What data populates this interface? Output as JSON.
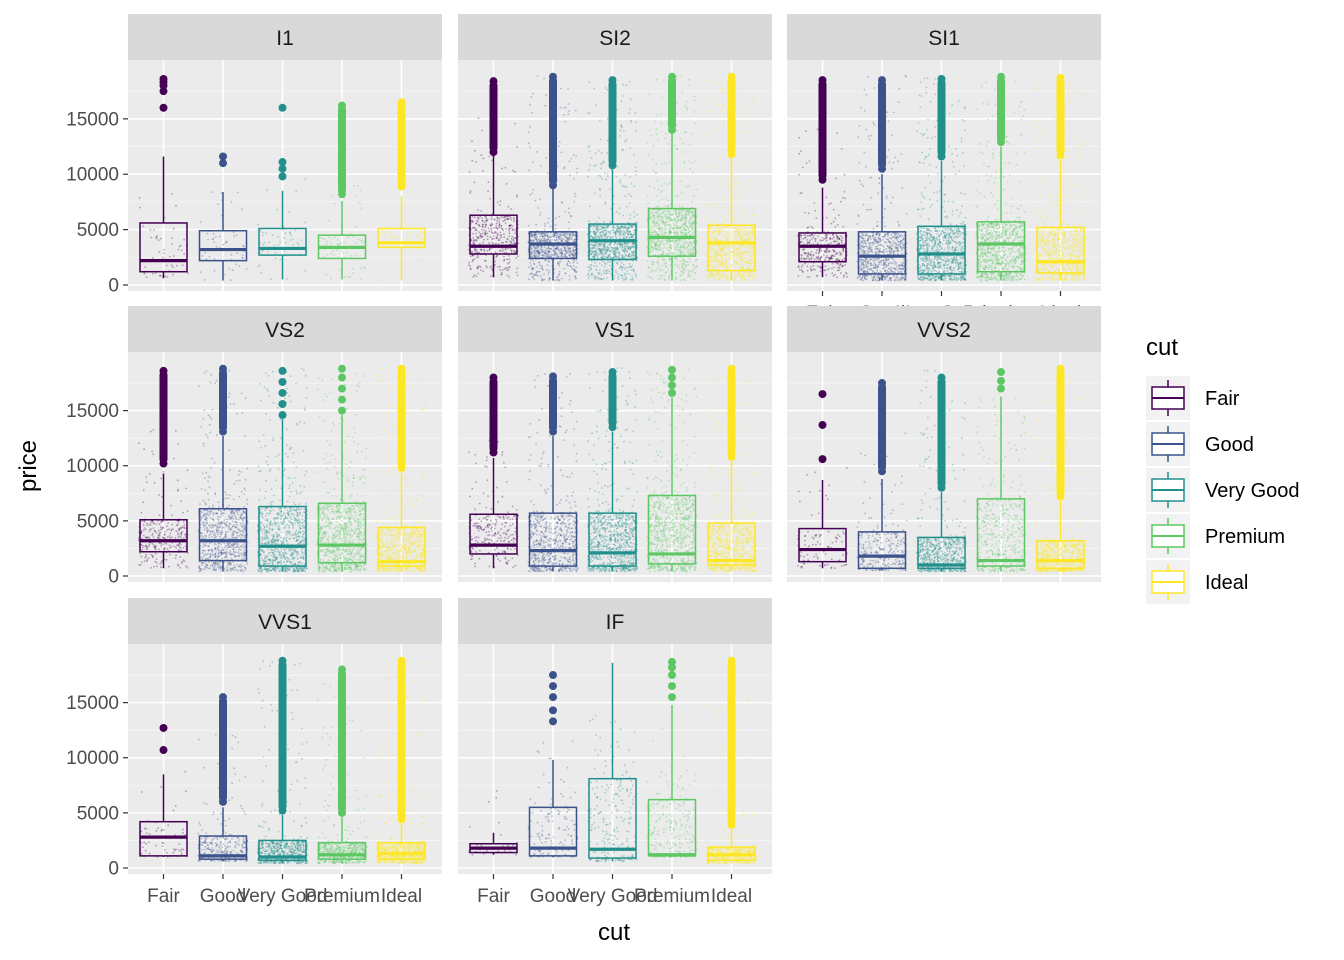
{
  "chart_data": {
    "type": "boxplot",
    "facet_by": "clarity",
    "xlabel": "cut",
    "ylabel": "price",
    "categories": [
      "Fair",
      "Good",
      "Very Good",
      "Premium",
      "Ideal"
    ],
    "colors": {
      "Fair": "#440154",
      "Good": "#3B528B",
      "Very Good": "#21908C",
      "Premium": "#5DC863",
      "Ideal": "#FDE725"
    },
    "ylim": [
      0,
      19500
    ],
    "y_ticks": [
      0,
      5000,
      10000,
      15000
    ],
    "y_tick_labels": [
      "0",
      "5000",
      "10000",
      "15000"
    ],
    "grid": true,
    "legend": {
      "title": "cut",
      "position": "right",
      "items": [
        "Fair",
        "Good",
        "Very Good",
        "Premium",
        "Ideal"
      ]
    },
    "facets": [
      {
        "title": "I1",
        "boxes": [
          {
            "cut": "Fair",
            "min": 600,
            "q1": 1200,
            "median": 2200,
            "q3": 5600,
            "max": 11600,
            "outliers": [
              16000,
              17500,
              18000,
              18300,
              18600
            ],
            "density": 0.04
          },
          {
            "cut": "Good",
            "min": 400,
            "q1": 2200,
            "median": 3200,
            "q3": 4900,
            "max": 8400,
            "outliers": [
              11000,
              11600
            ],
            "density": 0.04
          },
          {
            "cut": "Very Good",
            "min": 500,
            "q1": 2700,
            "median": 3300,
            "q3": 5100,
            "max": 8500,
            "outliers": [
              9800,
              10500,
              11100,
              16000
            ],
            "density": 0.04
          },
          {
            "cut": "Premium",
            "min": 500,
            "q1": 2400,
            "median": 3400,
            "q3": 4500,
            "max": 7600,
            "outliers": [
              8200,
              8800,
              9300,
              9900,
              10500,
              11700,
              13100,
              15200,
              16200
            ],
            "density": 0.06
          },
          {
            "cut": "Ideal",
            "min": 400,
            "q1": 3400,
            "median": 3800,
            "q3": 5100,
            "max": 8000,
            "outliers": [
              8900,
              9200,
              10500,
              11500,
              12200,
              13100,
              16500
            ],
            "density": 0.05
          }
        ]
      },
      {
        "title": "SI2",
        "boxes": [
          {
            "cut": "Fair",
            "min": 700,
            "q1": 2800,
            "median": 3500,
            "q3": 6300,
            "max": 11800,
            "outliers": [
              12000,
              12600,
              13300,
              14000,
              14800,
              15500,
              16200,
              17000,
              17800,
              18400
            ],
            "density": 0.45
          },
          {
            "cut": "Good",
            "min": 400,
            "q1": 2400,
            "median": 3700,
            "q3": 4800,
            "max": 8700,
            "outliers": [
              9000,
              10000,
              11000,
              12000,
              13000,
              14000,
              15000,
              16000,
              17000,
              18000,
              18800
            ],
            "density": 0.8
          },
          {
            "cut": "Very Good",
            "min": 400,
            "q1": 2300,
            "median": 4000,
            "q3": 5500,
            "max": 10400,
            "outliers": [
              10800,
              11500,
              12500,
              13500,
              14500,
              15500,
              16500,
              17500,
              18500
            ],
            "density": 1.0
          },
          {
            "cut": "Premium",
            "min": 400,
            "q1": 2600,
            "median": 4300,
            "q3": 6900,
            "max": 13700,
            "outliers": [
              14000,
              15000,
              16000,
              17000,
              18000,
              18800
            ],
            "density": 1.0
          },
          {
            "cut": "Ideal",
            "min": 400,
            "q1": 1300,
            "median": 3800,
            "q3": 5400,
            "max": 11400,
            "outliers": [
              11800,
              12800,
              13800,
              14800,
              15800,
              16800,
              17800,
              18800
            ],
            "density": 1.0
          }
        ]
      },
      {
        "title": "SI1",
        "boxes": [
          {
            "cut": "Fair",
            "min": 700,
            "q1": 2100,
            "median": 3500,
            "q3": 4700,
            "max": 8800,
            "outliers": [
              9500,
              10200,
              11000,
              12000,
              13000,
              14000,
              15000,
              16000,
              17500,
              18500
            ],
            "density": 0.4
          },
          {
            "cut": "Good",
            "min": 400,
            "q1": 1000,
            "median": 2600,
            "q3": 4800,
            "max": 10000,
            "outliers": [
              10500,
              11500,
              12500,
              13500,
              14500,
              15500,
              16500,
              17500,
              18500
            ],
            "density": 0.8
          },
          {
            "cut": "Very Good",
            "min": 400,
            "q1": 1000,
            "median": 2800,
            "q3": 5300,
            "max": 11200,
            "outliers": [
              11600,
              12600,
              13600,
              14600,
              15600,
              16600,
              17600,
              18600
            ],
            "density": 1.0
          },
          {
            "cut": "Premium",
            "min": 400,
            "q1": 1200,
            "median": 3700,
            "q3": 5700,
            "max": 12500,
            "outliers": [
              12900,
              13900,
              14900,
              15900,
              16900,
              17900,
              18800
            ],
            "density": 1.0
          },
          {
            "cut": "Ideal",
            "min": 400,
            "q1": 1100,
            "median": 2100,
            "q3": 5200,
            "max": 11300,
            "outliers": [
              11700,
              12700,
              13700,
              14700,
              15700,
              16700,
              17700,
              18700
            ],
            "density": 1.0
          }
        ]
      },
      {
        "title": "VS2",
        "boxes": [
          {
            "cut": "Fair",
            "min": 700,
            "q1": 2200,
            "median": 3200,
            "q3": 5100,
            "max": 9300,
            "outliers": [
              10200,
              11000,
              12300,
              13500,
              14700,
              15500,
              16500,
              17500,
              18600
            ],
            "density": 0.3
          },
          {
            "cut": "Good",
            "min": 400,
            "q1": 1400,
            "median": 3200,
            "q3": 6100,
            "max": 12700,
            "outliers": [
              13100,
              14100,
              15100,
              16100,
              17100,
              18100,
              18800
            ],
            "density": 0.8
          },
          {
            "cut": "Very Good",
            "min": 400,
            "q1": 900,
            "median": 2700,
            "q3": 6300,
            "max": 14200,
            "outliers": [
              14600,
              15600,
              16600,
              17600,
              18600
            ],
            "density": 1.0
          },
          {
            "cut": "Premium",
            "min": 400,
            "q1": 1200,
            "median": 2800,
            "q3": 6600,
            "max": 14600,
            "outliers": [
              15000,
              16000,
              17000,
              18000,
              18800
            ],
            "density": 1.0
          },
          {
            "cut": "Ideal",
            "min": 400,
            "q1": 900,
            "median": 1300,
            "q3": 4400,
            "max": 9400,
            "outliers": [
              9800,
              10800,
              11800,
              12800,
              13800,
              14800,
              15800,
              16800,
              17800,
              18800
            ],
            "density": 1.0
          }
        ]
      },
      {
        "title": "VS1",
        "boxes": [
          {
            "cut": "Fair",
            "min": 700,
            "q1": 2000,
            "median": 2800,
            "q3": 5600,
            "max": 10700,
            "outliers": [
              11200,
              12200,
              13000,
              14300,
              15200,
              15800,
              17500,
              18000
            ],
            "density": 0.25
          },
          {
            "cut": "Good",
            "min": 400,
            "q1": 900,
            "median": 2300,
            "q3": 5700,
            "max": 12700,
            "outliers": [
              13100,
              14100,
              15100,
              16100,
              17100,
              18100
            ],
            "density": 0.7
          },
          {
            "cut": "Very Good",
            "min": 400,
            "q1": 900,
            "median": 2100,
            "q3": 5700,
            "max": 13100,
            "outliers": [
              13500,
              14500,
              15500,
              16500,
              17500,
              18500
            ],
            "density": 1.0
          },
          {
            "cut": "Premium",
            "min": 400,
            "q1": 1100,
            "median": 2000,
            "q3": 7300,
            "max": 16200,
            "outliers": [
              16600,
              17300,
              18000,
              18700
            ],
            "density": 0.9
          },
          {
            "cut": "Ideal",
            "min": 400,
            "q1": 1000,
            "median": 1400,
            "q3": 4800,
            "max": 10400,
            "outliers": [
              10800,
              11800,
              12800,
              13800,
              14800,
              15800,
              16800,
              17800,
              18800
            ],
            "density": 1.0
          }
        ]
      },
      {
        "title": "VVS2",
        "boxes": [
          {
            "cut": "Fair",
            "min": 700,
            "q1": 1300,
            "median": 2400,
            "q3": 4300,
            "max": 8700,
            "outliers": [
              10600,
              13700,
              16500
            ],
            "density": 0.08
          },
          {
            "cut": "Good",
            "min": 500,
            "q1": 700,
            "median": 1800,
            "q3": 4000,
            "max": 8800,
            "outliers": [
              9500,
              10500,
              11500,
              12500,
              13500,
              14500,
              15200,
              16500,
              17500
            ],
            "density": 0.3
          },
          {
            "cut": "Very Good",
            "min": 400,
            "q1": 700,
            "median": 1000,
            "q3": 3500,
            "max": 7600,
            "outliers": [
              8000,
              9000,
              10000,
              11000,
              12000,
              13000,
              14000,
              15000,
              16000,
              17000,
              18000
            ],
            "density": 0.7
          },
          {
            "cut": "Premium",
            "min": 400,
            "q1": 900,
            "median": 1400,
            "q3": 7000,
            "max": 16300,
            "outliers": [
              17000,
              17700,
              18500
            ],
            "density": 0.5
          },
          {
            "cut": "Ideal",
            "min": 400,
            "q1": 700,
            "median": 1400,
            "q3": 3200,
            "max": 6800,
            "outliers": [
              7200,
              8200,
              9200,
              10200,
              11200,
              12200,
              13200,
              14200,
              15200,
              16200,
              17200,
              18200,
              18800
            ],
            "density": 0.9
          }
        ]
      },
      {
        "title": "VVS1",
        "boxes": [
          {
            "cut": "Fair",
            "min": 1000,
            "q1": 1100,
            "median": 2800,
            "q3": 4200,
            "max": 8500,
            "outliers": [
              10700,
              12700
            ],
            "density": 0.05
          },
          {
            "cut": "Good",
            "min": 600,
            "q1": 800,
            "median": 1100,
            "q3": 2900,
            "max": 5500,
            "outliers": [
              6000,
              7000,
              8000,
              9000,
              10000,
              11000,
              15500
            ],
            "density": 0.3
          },
          {
            "cut": "Very Good",
            "min": 400,
            "q1": 700,
            "median": 1000,
            "q3": 2500,
            "max": 4800,
            "outliers": [
              5200,
              6200,
              7200,
              8200,
              9200,
              10200,
              11200,
              12200,
              13200,
              14200,
              15200,
              16200,
              17200,
              18200,
              18800
            ],
            "density": 0.7
          },
          {
            "cut": "Premium",
            "min": 400,
            "q1": 800,
            "median": 1200,
            "q3": 2300,
            "max": 4600,
            "outliers": [
              5000,
              6000,
              7000,
              8000,
              9000,
              10000,
              11000,
              12000,
              13000,
              14000,
              15000,
              16000,
              17000,
              18000
            ],
            "density": 0.6
          },
          {
            "cut": "Ideal",
            "min": 400,
            "q1": 800,
            "median": 1300,
            "q3": 2300,
            "max": 4000,
            "outliers": [
              4400,
              5400,
              6400,
              7400,
              8400,
              9400,
              10400,
              11400,
              12400,
              13400,
              14400,
              15400,
              16400,
              17400,
              18400,
              18800
            ],
            "density": 0.9
          }
        ]
      },
      {
        "title": "IF",
        "boxes": [
          {
            "cut": "Fair",
            "min": 1200,
            "q1": 1400,
            "median": 1800,
            "q3": 2200,
            "max": 3200,
            "outliers": [],
            "density": 0.02
          },
          {
            "cut": "Good",
            "min": 1000,
            "q1": 1100,
            "median": 1800,
            "q3": 5500,
            "max": 9800,
            "outliers": [
              13300,
              14300,
              15500,
              16500,
              17500
            ],
            "density": 0.15
          },
          {
            "cut": "Very Good",
            "min": 600,
            "q1": 900,
            "median": 1700,
            "q3": 8100,
            "max": 18600,
            "outliers": [],
            "density": 0.25
          },
          {
            "cut": "Premium",
            "min": 1000,
            "q1": 1100,
            "median": 1200,
            "q3": 6200,
            "max": 14800,
            "outliers": [
              15500,
              16500,
              17500,
              18200,
              18700
            ],
            "density": 0.25
          },
          {
            "cut": "Ideal",
            "min": 400,
            "q1": 700,
            "median": 1200,
            "q3": 1900,
            "max": 3500,
            "outliers": [
              3900,
              4900,
              5900,
              6900,
              7900,
              8900,
              9900,
              10900,
              11900,
              12900,
              13900,
              14900,
              15900,
              16900,
              17900,
              18800
            ],
            "density": 0.6
          }
        ]
      }
    ]
  }
}
